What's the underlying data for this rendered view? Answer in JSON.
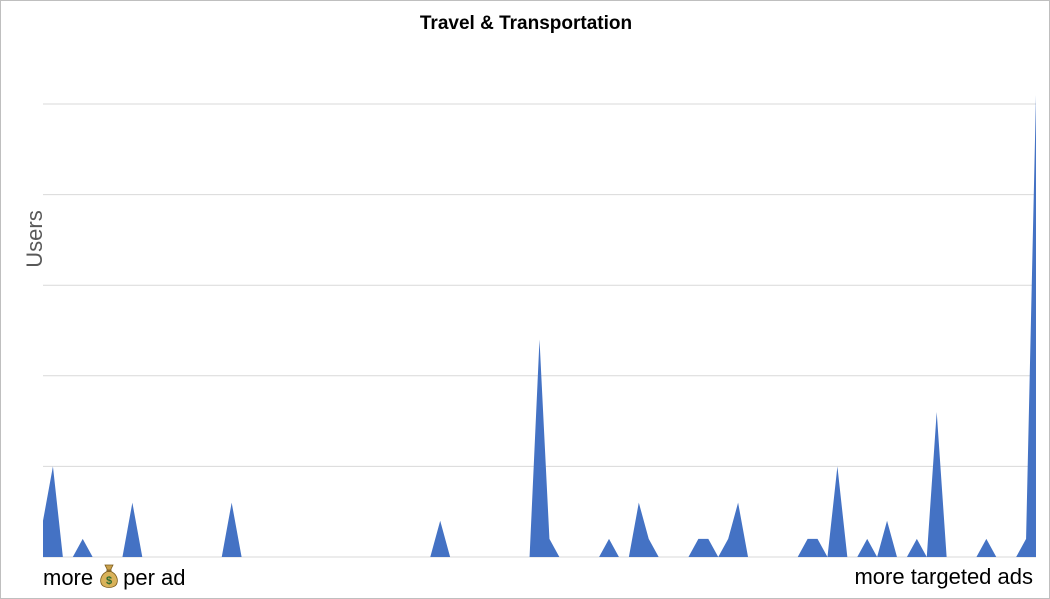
{
  "chart_data": {
    "type": "area",
    "title": "Travel & Transportation",
    "subtitle": "",
    "xlabel": "",
    "ylabel": "Users",
    "x_label_left": "more",
    "x_label_left_icon": "money-bag-icon",
    "x_label_left_suffix": "per ad",
    "x_label_right": "more targeted ads",
    "ylim": [
      0,
      5
    ],
    "grid": true,
    "legend": "none",
    "series_color": "#4472C4",
    "values": [
      0.4,
      1,
      0,
      0,
      0.2,
      0,
      0,
      0,
      0,
      0.6,
      0,
      0,
      0,
      0,
      0,
      0,
      0,
      0,
      0,
      0.6,
      0,
      0,
      0,
      0,
      0,
      0,
      0,
      0,
      0,
      0,
      0,
      0,
      0,
      0,
      0,
      0,
      0,
      0,
      0,
      0,
      0.4,
      0,
      0,
      0,
      0,
      0,
      0,
      0,
      0,
      0,
      2.4,
      0.2,
      0,
      0,
      0,
      0,
      0,
      0.2,
      0,
      0,
      0.6,
      0.2,
      0,
      0,
      0,
      0,
      0.2,
      0.2,
      0,
      0.2,
      0.6,
      0,
      0,
      0,
      0,
      0,
      0,
      0.2,
      0.2,
      0,
      1,
      0,
      0,
      0.2,
      0,
      0.4,
      0,
      0,
      0.2,
      0,
      1.6,
      0,
      0,
      0,
      0,
      0.2,
      0,
      0,
      0,
      0.2,
      5.1
    ]
  }
}
